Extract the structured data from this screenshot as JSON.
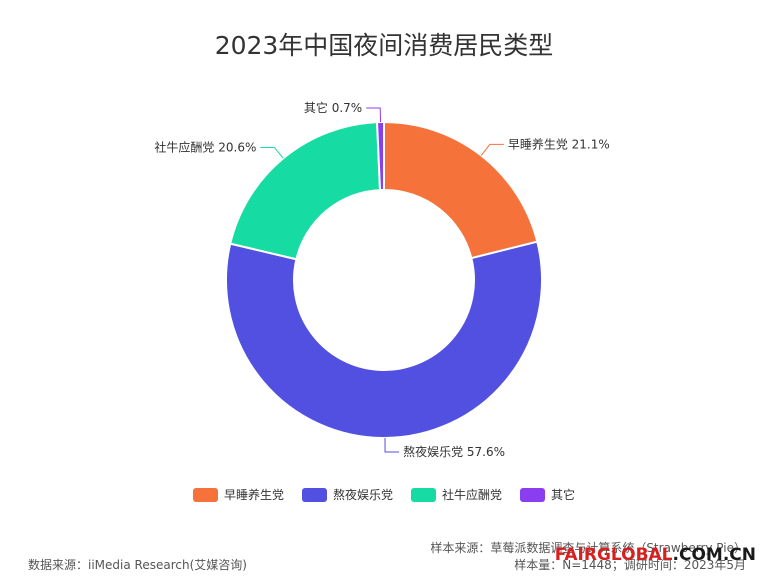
{
  "title": "2023年中国夜间消费居民类型",
  "chart_data": {
    "type": "pie",
    "title": "2023年中国夜间消费居民类型",
    "donut": true,
    "categories": [
      "早睡养生党",
      "熬夜娱乐党",
      "社牛应酬党",
      "其它"
    ],
    "values": [
      21.1,
      57.6,
      20.6,
      0.7
    ],
    "value_labels": [
      "早睡养生党 21.1%",
      "熬夜娱乐党 57.6%",
      "社牛应酬党 20.6%",
      "其它 0.7%"
    ],
    "colors": [
      "#f5723a",
      "#5250e0",
      "#16dca3",
      "#8a3ef0"
    ],
    "legend_position": "bottom-center"
  },
  "footer": {
    "source": "数据来源：iiMedia Research(艾媒咨询)",
    "sample_source": "样本来源：草莓派数据调查与计算系统（Strawberry Pie）",
    "sample_size": "样本量：N=1448；调研时间：2023年5月"
  },
  "watermark": {
    "part1": "FAIRGLOBAL",
    "part2": ".COM.CN"
  }
}
